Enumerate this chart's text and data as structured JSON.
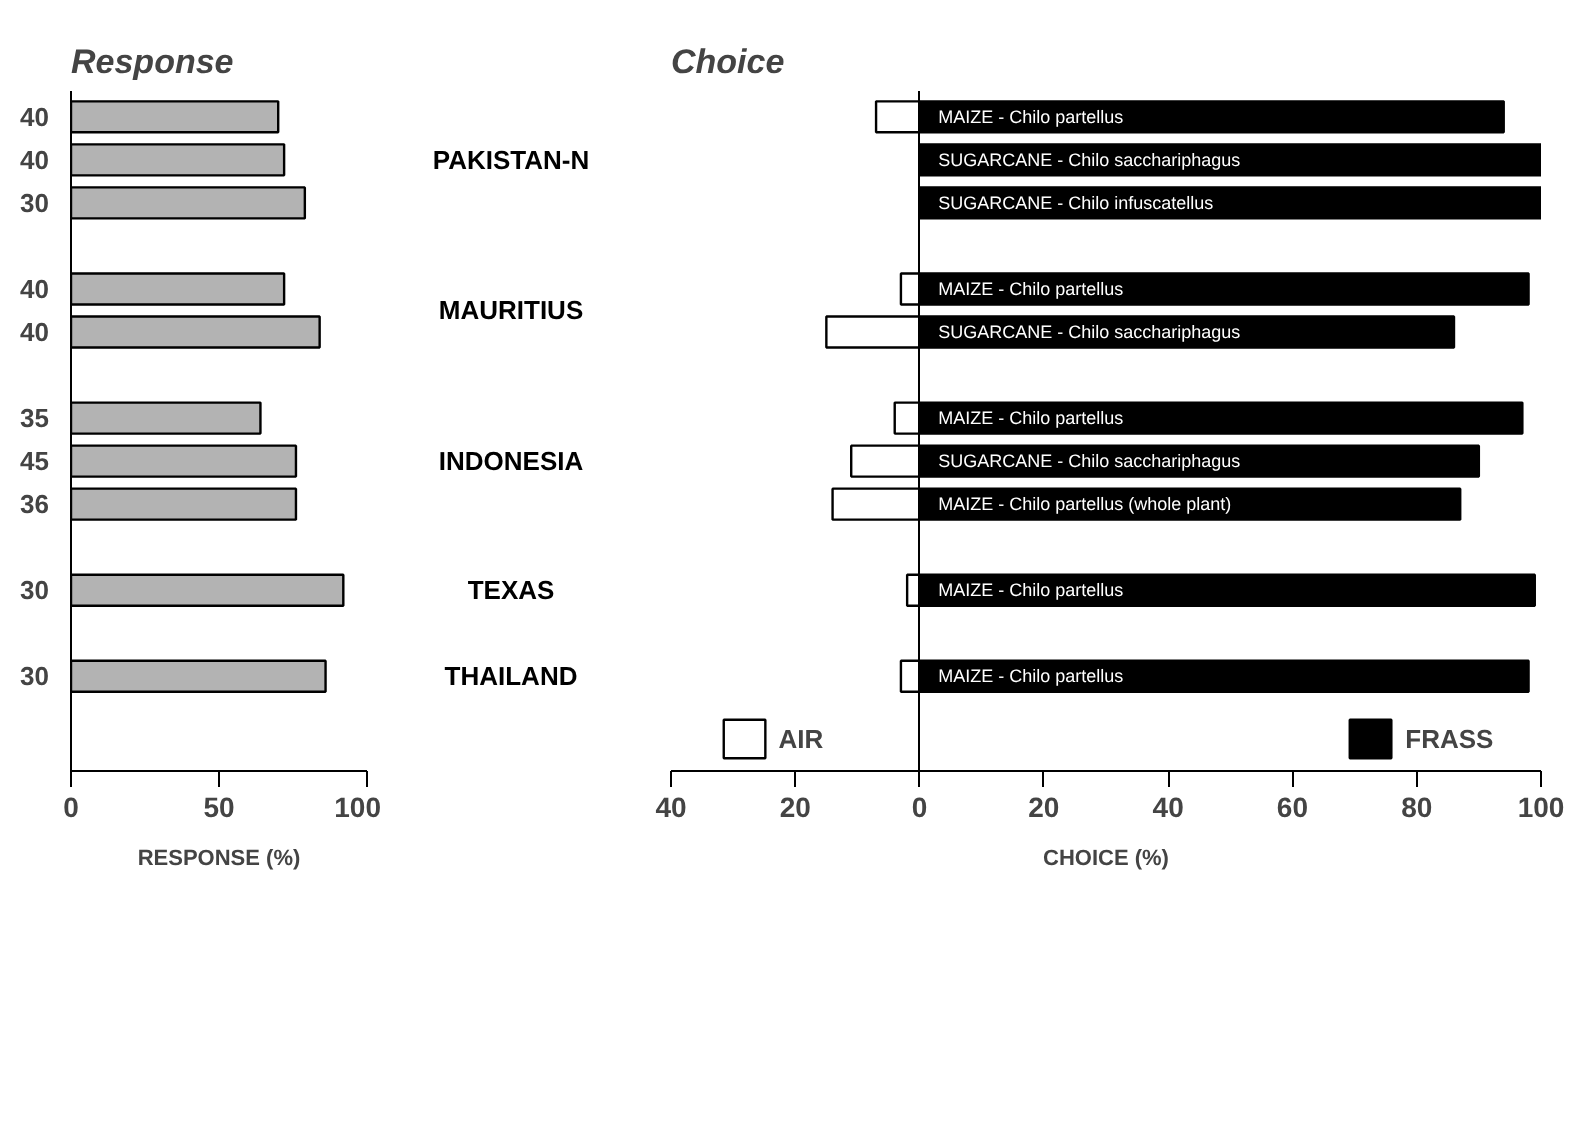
{
  "chart_data": [
    {
      "type": "bar",
      "orientation": "horizontal",
      "title": "Response",
      "xlabel": "RESPONSE (%)",
      "categories": [
        "40",
        "40",
        "30",
        null,
        "40",
        "40",
        null,
        "35",
        "45",
        "36",
        null,
        "30",
        null,
        "30"
      ],
      "values": [
        70,
        72,
        79,
        null,
        72,
        84,
        null,
        64,
        76,
        76,
        null,
        92,
        null,
        86
      ],
      "color": "#b3b3b3",
      "xlim": [
        0,
        100
      ],
      "xticks": [
        0,
        50,
        100
      ],
      "annotations": [
        "PAKISTAN-N",
        "MAURITIUS",
        "INDONESIA",
        "TEXAS",
        "THAILAND"
      ]
    },
    {
      "type": "bar",
      "orientation": "horizontal",
      "stacked": true,
      "title": "Choice",
      "xlabel": "CHOICE (%)",
      "categories": [
        "MAIZE - Chilo partellus",
        "SUGARCANE - Chilo sacchariphagus",
        "SUGARCANE - Chilo infuscatellus",
        null,
        "MAIZE - Chilo partellus",
        "SUGARCANE - Chilo sacchariphagus",
        null,
        "MAIZE - Chilo partellus",
        "SUGARCANE - Chilo sacchariphagus",
        "MAIZE - Chilo partellus (whole plant)",
        null,
        "MAIZE - Chilo partellus",
        null,
        "MAIZE - Chilo partellus"
      ],
      "series": [
        {
          "name": "AIR",
          "color": "#ffffff",
          "values": [
            -7,
            0,
            0,
            null,
            -3,
            -15,
            null,
            -4,
            -11,
            -14,
            null,
            -2,
            null,
            -3
          ]
        },
        {
          "name": "FRASS",
          "color": "#000000",
          "values": [
            94,
            100,
            100,
            null,
            98,
            86,
            null,
            97,
            90,
            87,
            null,
            99,
            null,
            98
          ]
        }
      ],
      "xlim": [
        -40,
        100
      ],
      "xticks": [
        {
          "value": -40,
          "label": "40"
        },
        {
          "value": -20,
          "label": "20"
        },
        0,
        20,
        40,
        60,
        80,
        100
      ],
      "legend": "bottom"
    }
  ]
}
